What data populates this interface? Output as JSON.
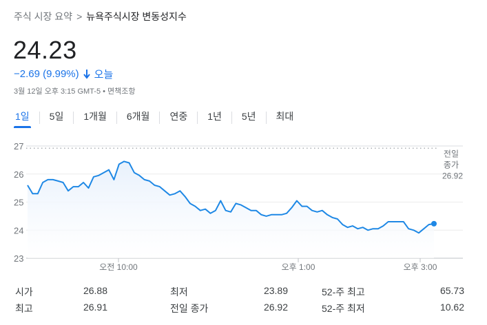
{
  "breadcrumb": {
    "parent": "주식 시장 요약",
    "separator": ">",
    "current": "뉴욕주식시장 변동성지수"
  },
  "quote": {
    "price": "24.23",
    "change": "−2.69 (9.99%)",
    "direction": "down",
    "period": "오늘",
    "timestamp": "3월 12일 오후 3:15 GMT-5 • 면책조항"
  },
  "tabs": [
    "1일",
    "5일",
    "1개월",
    "6개월",
    "연중",
    "1년",
    "5년",
    "최대"
  ],
  "active_tab": "1일",
  "colors": {
    "accent": "#1a73e8",
    "line": "#1e88e5",
    "fill": "#e8f1fc"
  },
  "chart_data": {
    "type": "area",
    "y_ticks": [
      "27",
      "26",
      "25",
      "24",
      "23"
    ],
    "ylim": [
      23,
      27
    ],
    "x_ticks": [
      "오전 10:00",
      "오후 1:00",
      "오후 3:00"
    ],
    "previous_close": {
      "label_line1": "전일",
      "label_line2": "종가",
      "value": 26.92,
      "value_text": "26.92"
    },
    "series": [
      {
        "values": [
          25.6,
          25.3,
          25.3,
          25.7,
          25.8,
          25.8,
          25.75,
          25.7,
          25.4,
          25.55,
          25.55,
          25.7,
          25.5,
          25.9,
          25.95,
          26.05,
          26.15,
          25.8,
          26.35,
          26.45,
          26.4,
          26.05,
          25.95,
          25.8,
          25.75,
          25.6,
          25.55,
          25.4,
          25.25,
          25.3,
          25.4,
          25.2,
          24.95,
          24.85,
          24.7,
          24.75,
          24.6,
          24.7,
          25.05,
          24.7,
          24.65,
          24.95,
          24.9,
          24.8,
          24.7,
          24.7,
          24.55,
          24.5,
          24.55,
          24.55,
          24.55,
          24.6,
          24.8,
          25.05,
          24.85,
          24.85,
          24.7,
          24.65,
          24.7,
          24.55,
          24.45,
          24.4,
          24.2,
          24.1,
          24.15,
          24.05,
          24.1,
          24.0,
          24.05,
          24.05,
          24.15,
          24.3,
          24.3,
          24.3,
          24.3,
          24.05,
          24.0,
          23.9,
          24.05,
          24.2,
          24.23
        ]
      }
    ]
  },
  "stats": [
    [
      {
        "label": "시가",
        "value": "26.88"
      },
      {
        "label": "최저",
        "value": "23.89"
      },
      {
        "label": "52-주 최고",
        "value": "65.73"
      }
    ],
    [
      {
        "label": "최고",
        "value": "26.91"
      },
      {
        "label": "전일 종가",
        "value": "26.92"
      },
      {
        "label": "52-주 최저",
        "value": "10.62"
      }
    ]
  ]
}
